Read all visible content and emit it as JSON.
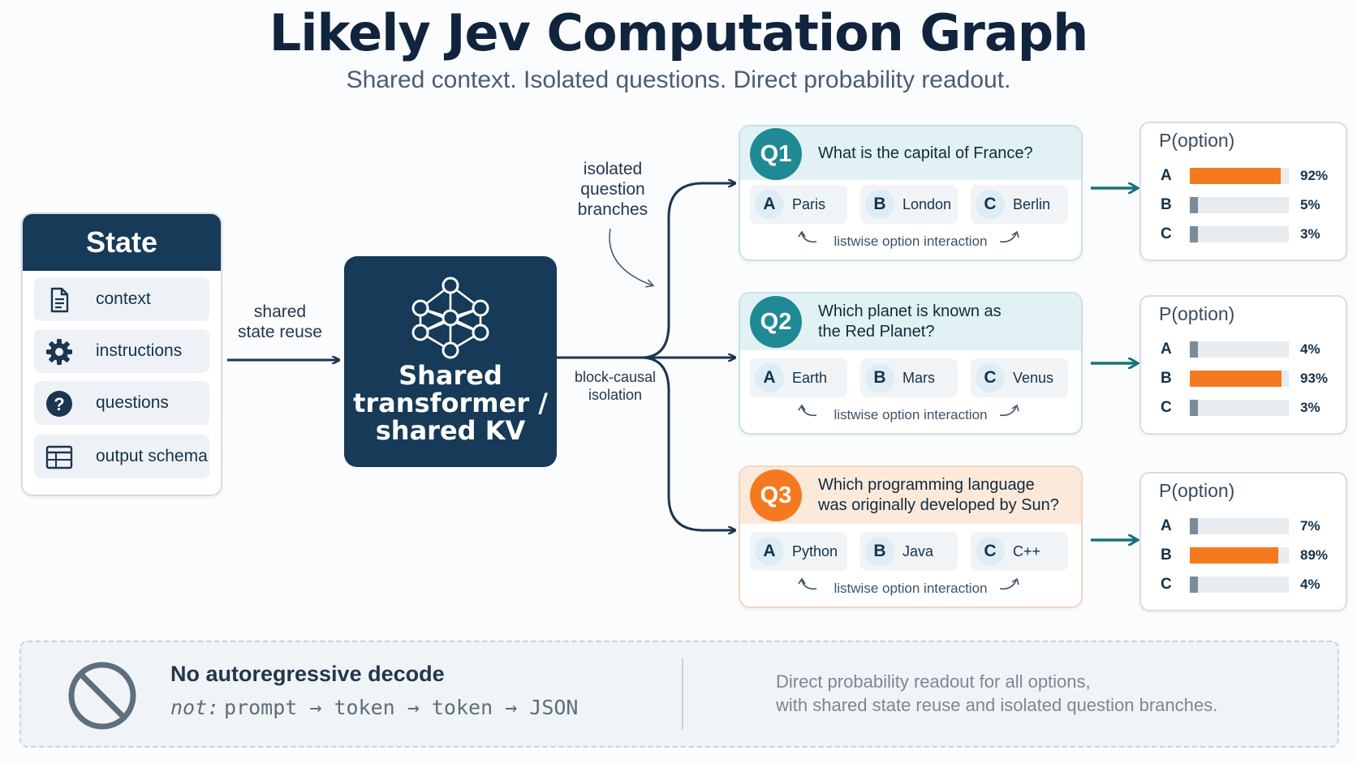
{
  "header": {
    "title": "Likely Jev Computation Graph",
    "subtitle": "Shared context. Isolated questions. Direct probability readout."
  },
  "state": {
    "title": "State",
    "items": [
      {
        "label": "context",
        "icon": "document-icon"
      },
      {
        "label": "instructions",
        "icon": "gear-icon"
      },
      {
        "label": "questions",
        "icon": "question-icon"
      },
      {
        "label": "output schema",
        "icon": "table-icon"
      }
    ]
  },
  "edges": {
    "shared_state_reuse": "shared\nstate reuse",
    "block_causal": "block-causal\nisolation",
    "isolated_branches": "isolated\nquestion\nbranches"
  },
  "transformer": {
    "label": "Shared\ntransformer /\nshared KV",
    "icon": "neural-network-icon"
  },
  "option_interaction_label": "listwise option interaction",
  "probability_title": "P(option)",
  "questions": [
    {
      "badge": "Q1",
      "text": "What is the capital of France?",
      "options": [
        {
          "letter": "A",
          "text": "Paris"
        },
        {
          "letter": "B",
          "text": "London"
        },
        {
          "letter": "C",
          "text": "Berlin"
        }
      ],
      "probs": [
        {
          "letter": "A",
          "value": 92,
          "label": "92%"
        },
        {
          "letter": "B",
          "value": 5,
          "label": "5%"
        },
        {
          "letter": "C",
          "value": 3,
          "label": "3%"
        }
      ]
    },
    {
      "badge": "Q2",
      "text": "Which planet is known as\nthe Red Planet?",
      "options": [
        {
          "letter": "A",
          "text": "Earth"
        },
        {
          "letter": "B",
          "text": "Mars"
        },
        {
          "letter": "C",
          "text": "Venus"
        }
      ],
      "probs": [
        {
          "letter": "A",
          "value": 4,
          "label": "4%"
        },
        {
          "letter": "B",
          "value": 93,
          "label": "93%"
        },
        {
          "letter": "C",
          "value": 3,
          "label": "3%"
        }
      ]
    },
    {
      "badge": "Q3",
      "text": "Which programming language\nwas originally developed by Sun?",
      "options": [
        {
          "letter": "A",
          "text": "Python"
        },
        {
          "letter": "B",
          "text": "Java"
        },
        {
          "letter": "C",
          "text": "C++"
        }
      ],
      "probs": [
        {
          "letter": "A",
          "value": 7,
          "label": "7%"
        },
        {
          "letter": "B",
          "value": 89,
          "label": "89%"
        },
        {
          "letter": "C",
          "value": 4,
          "label": "4%"
        }
      ]
    }
  ],
  "footer": {
    "icon": "prohibited-icon",
    "heading": "No autoregressive decode",
    "not_label": "not:",
    "sequence": "prompt → token → token → JSON",
    "description": "Direct probability readout for all options,\nwith shared state reuse and isolated question branches."
  },
  "colors": {
    "navy": "#163a57",
    "teal": "#1f8a93",
    "orange": "#f57a1f",
    "muted_bar": "#7a8b9a",
    "q3_header": "#fde9da"
  }
}
